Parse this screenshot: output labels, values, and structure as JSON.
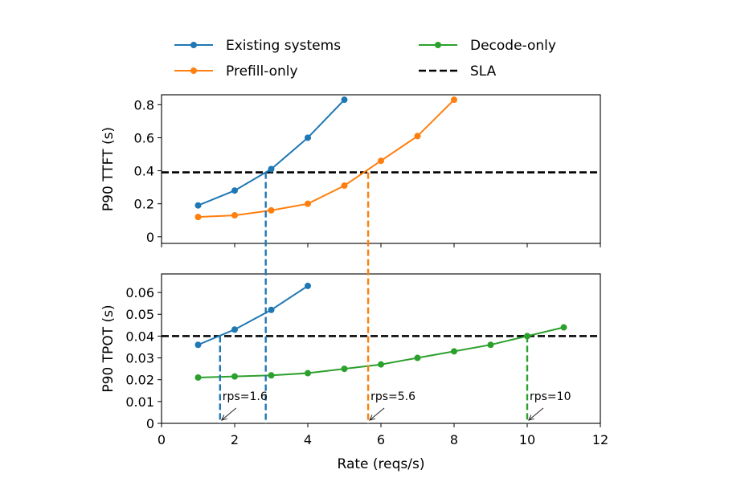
{
  "chart_data": {
    "type": "line",
    "legend": {
      "position": "top",
      "entries": [
        {
          "name": "Existing systems",
          "color": "#1f77b4",
          "style": "solid-marker"
        },
        {
          "name": "Decode-only",
          "color": "#2ca02c",
          "style": "solid-marker"
        },
        {
          "name": "Prefill-only",
          "color": "#ff7f0e",
          "style": "solid-marker"
        },
        {
          "name": "SLA",
          "color": "#000000",
          "style": "dashed"
        }
      ]
    },
    "xlabel": "Rate (reqs/s)",
    "xlim": [
      0,
      12
    ],
    "xticks": [
      "0",
      "2",
      "4",
      "6",
      "8",
      "10",
      "12"
    ],
    "top": {
      "ylabel": "P90 TTFT (s)",
      "ylim": [
        -0.04,
        0.86
      ],
      "yticks": [
        "0",
        "0.2",
        "0.4",
        "0.6",
        "0.8"
      ],
      "sla": 0.39,
      "series": [
        {
          "name": "Existing systems",
          "color": "#1f77b4",
          "x": [
            1,
            2,
            3,
            4,
            5
          ],
          "y": [
            0.19,
            0.28,
            0.41,
            0.6,
            0.83
          ]
        },
        {
          "name": "Prefill-only",
          "color": "#ff7f0e",
          "x": [
            1,
            2,
            3,
            4,
            5,
            6,
            7,
            8
          ],
          "y": [
            0.12,
            0.13,
            0.16,
            0.2,
            0.31,
            0.46,
            0.61,
            0.83
          ]
        }
      ]
    },
    "bottom": {
      "ylabel": "P90 TPOT (s)",
      "ylim": [
        0,
        0.0685
      ],
      "yticks": [
        "0",
        "0.01",
        "0.02",
        "0.03",
        "0.04",
        "0.05",
        "0.06"
      ],
      "sla": 0.04,
      "series": [
        {
          "name": "Existing systems",
          "color": "#1f77b4",
          "x": [
            1,
            2,
            3,
            4
          ],
          "y": [
            0.036,
            0.043,
            0.052,
            0.063
          ]
        },
        {
          "name": "Decode-only",
          "color": "#2ca02c",
          "x": [
            1,
            2,
            3,
            4,
            5,
            6,
            7,
            8,
            9,
            10,
            11
          ],
          "y": [
            0.021,
            0.0215,
            0.022,
            0.023,
            0.025,
            0.027,
            0.03,
            0.033,
            0.036,
            0.04,
            0.044
          ]
        }
      ]
    },
    "intersections": [
      {
        "x": 2.85,
        "color": "#1f77b4",
        "span": "both"
      },
      {
        "x": 5.65,
        "color": "#ff7f0e",
        "span": "both"
      },
      {
        "x": 1.6,
        "color": "#1f77b4",
        "span": "bottom"
      },
      {
        "x": 10,
        "color": "#2ca02c",
        "span": "bottom"
      }
    ],
    "annotations": [
      {
        "text": "rps=1.6",
        "x": 1.6
      },
      {
        "text": "rps=5.6",
        "x": 5.65
      },
      {
        "text": "rps=10",
        "x": 10
      }
    ]
  }
}
